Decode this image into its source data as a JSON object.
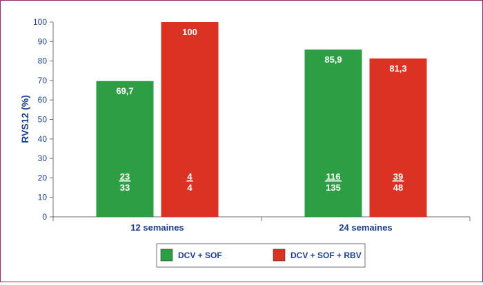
{
  "chart_data": {
    "type": "bar",
    "ylabel": "RVS12 (%)",
    "ylim": [
      0,
      100
    ],
    "yticks": [
      0,
      10,
      20,
      30,
      40,
      50,
      60,
      70,
      80,
      90,
      100
    ],
    "categories": [
      "12 semaines",
      "24 semaines"
    ],
    "series": [
      {
        "name": "DCV + SOF",
        "color": "#2e9e44",
        "values": [
          69.7,
          85.9
        ],
        "value_labels": [
          "69,7",
          "85,9"
        ],
        "numerators": [
          "23",
          "116"
        ],
        "denominators": [
          "33",
          "135"
        ]
      },
      {
        "name": "DCV + SOF + RBV",
        "color": "#dc3224",
        "values": [
          100,
          81.3
        ],
        "value_labels": [
          "100",
          "81,3"
        ],
        "numerators": [
          "4",
          "39"
        ],
        "denominators": [
          "4",
          "48"
        ]
      }
    ],
    "grid": false,
    "legend_position": "bottom"
  },
  "colors": {
    "axis_text": "#1c3f8c",
    "border": "#8f2a72"
  }
}
